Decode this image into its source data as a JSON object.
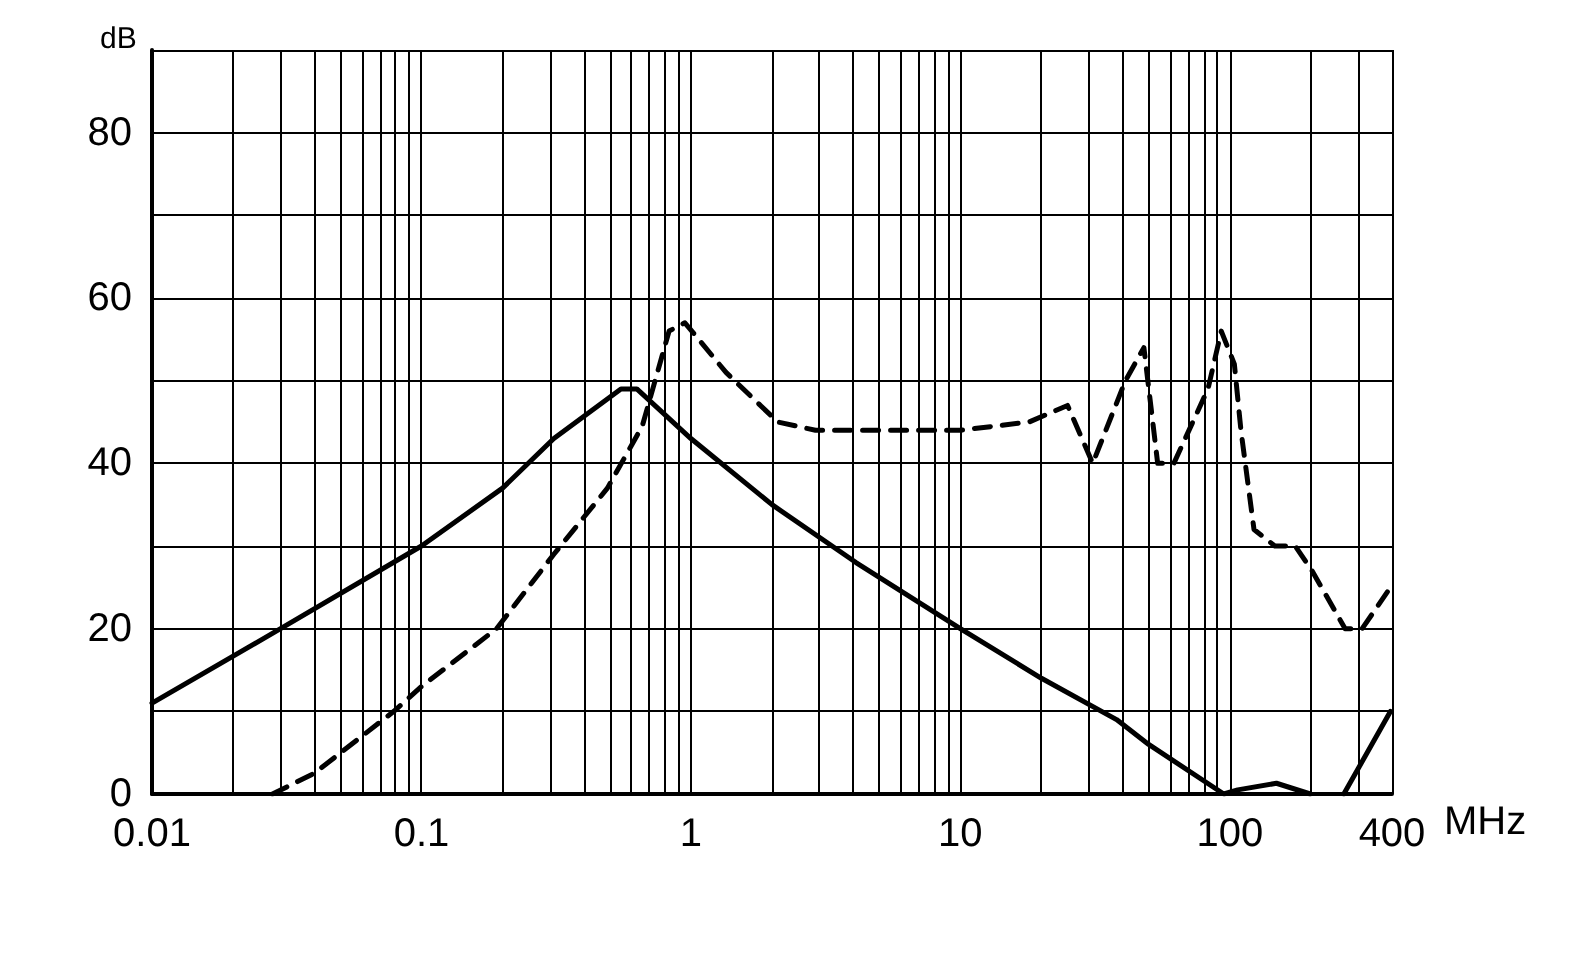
{
  "chart_data": {
    "type": "line",
    "xlabel": "MHz",
    "ylabel": "dB",
    "log": "x",
    "grid": true,
    "marker": "none",
    "xlim": [
      0.01,
      400
    ],
    "ylim": [
      0,
      90
    ],
    "xticks": [
      0.01,
      {
        "value": 0.02,
        "label": null
      },
      {
        "value": 0.03,
        "label": null
      },
      {
        "value": 0.04,
        "label": null
      },
      {
        "value": 0.05,
        "label": null
      },
      {
        "value": 0.06,
        "label": null
      },
      {
        "value": 0.07,
        "label": null
      },
      {
        "value": 0.08,
        "label": null
      },
      {
        "value": 0.09,
        "label": null
      },
      0.1,
      {
        "value": 0.2,
        "label": null
      },
      {
        "value": 0.3,
        "label": null
      },
      {
        "value": 0.4,
        "label": null
      },
      {
        "value": 0.5,
        "label": null
      },
      {
        "value": 0.6,
        "label": null
      },
      {
        "value": 0.7,
        "label": null
      },
      {
        "value": 0.8,
        "label": null
      },
      {
        "value": 0.9,
        "label": null
      },
      1,
      {
        "value": 2,
        "label": null
      },
      {
        "value": 3,
        "label": null
      },
      {
        "value": 4,
        "label": null
      },
      {
        "value": 5,
        "label": null
      },
      {
        "value": 6,
        "label": null
      },
      {
        "value": 7,
        "label": null
      },
      {
        "value": 8,
        "label": null
      },
      {
        "value": 9,
        "label": null
      },
      10,
      {
        "value": 20,
        "label": null
      },
      {
        "value": 30,
        "label": null
      },
      {
        "value": 40,
        "label": null
      },
      {
        "value": 50,
        "label": null
      },
      {
        "value": 60,
        "label": null
      },
      {
        "value": 70,
        "label": null
      },
      {
        "value": 80,
        "label": null
      },
      {
        "value": 90,
        "label": null
      },
      100,
      {
        "value": 200,
        "label": null
      },
      {
        "value": 300,
        "label": null
      },
      400
    ],
    "yticks": [
      0,
      {
        "value": 10,
        "label": null
      },
      20,
      {
        "value": 30,
        "label": null
      },
      40,
      {
        "value": 50,
        "label": null
      },
      60,
      {
        "value": 70,
        "label": null
      },
      80,
      {
        "value": 90,
        "label": null
      }
    ],
    "series": [
      {
        "color": "#000000",
        "line_style": "solid",
        "x": [
          0.01,
          0.03,
          0.1,
          0.2,
          0.31,
          0.55,
          0.63,
          1,
          2,
          4.1,
          10,
          20,
          38,
          50,
          95,
          107,
          149,
          199,
          230,
          265,
          395
        ],
        "values": [
          11,
          20,
          30,
          37,
          43,
          49,
          49,
          43,
          35,
          28,
          20,
          14,
          9,
          6,
          0,
          0.5,
          1.3,
          0,
          null,
          0,
          10
        ]
      },
      {
        "color": "#000000",
        "line_style": "dashed",
        "x": [
          0.028,
          0.04,
          0.079,
          0.1,
          0.19,
          0.31,
          0.49,
          0.66,
          0.83,
          0.95,
          1.35,
          2.1,
          2.9,
          10,
          18,
          25,
          31,
          41,
          48,
          54,
          62,
          83,
          93,
          104,
          110,
          123,
          147,
          175,
          202,
          268,
          310,
          395
        ],
        "values": [
          0,
          2.5,
          10,
          13,
          20,
          29,
          37,
          44.5,
          56,
          57,
          51,
          45,
          44,
          44,
          45,
          47,
          40,
          50,
          54,
          40,
          40,
          49,
          56,
          52,
          44,
          32,
          30,
          30,
          27,
          20,
          20,
          25
        ]
      }
    ]
  }
}
